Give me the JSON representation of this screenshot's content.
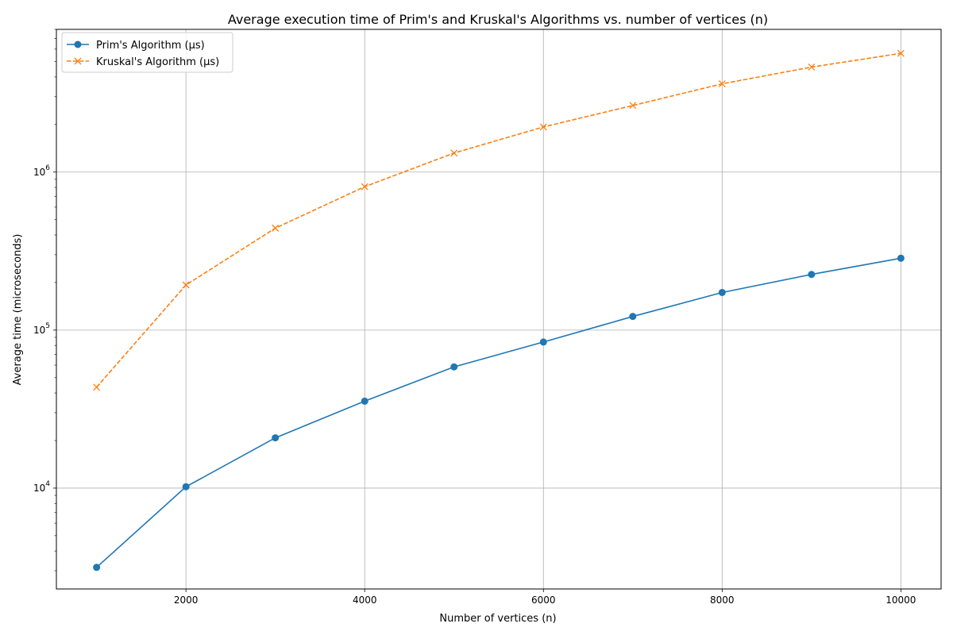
{
  "chart_data": {
    "type": "line",
    "title": "Average execution time of Prim's and Kruskal's Algorithms vs. number of vertices (n)",
    "xlabel": "Number of vertices (n)",
    "ylabel": "Average time (microseconds)",
    "yscale": "log",
    "grid": true,
    "legend_position": "top-left",
    "xlim": [
      550,
      10450
    ],
    "ylim": [
      2300,
      8000000
    ],
    "x_ticks": [
      2000,
      4000,
      6000,
      8000,
      10000
    ],
    "y_ticks": [
      {
        "value": 10000,
        "base": "10",
        "exp": "4"
      },
      {
        "value": 100000,
        "base": "10",
        "exp": "5"
      },
      {
        "value": 1000000,
        "base": "10",
        "exp": "6"
      }
    ],
    "x": [
      1000,
      2000,
      3000,
      4000,
      5000,
      6000,
      7000,
      8000,
      9000,
      10000
    ],
    "series": [
      {
        "name": "Prim's Algorithm (μs)",
        "color": "#1f77b4",
        "marker": "circle",
        "line_style": "solid",
        "values": [
          3150,
          10200,
          20800,
          35500,
          58500,
          84000,
          122000,
          173000,
          225000,
          285000
        ]
      },
      {
        "name": "Kruskal's Algorithm (μs)",
        "color": "#ff7f0e",
        "marker": "x",
        "line_style": "dashed",
        "values": [
          43500,
          193000,
          442000,
          808000,
          1320000,
          1930000,
          2640000,
          3620000,
          4620000,
          5640000
        ]
      }
    ]
  }
}
